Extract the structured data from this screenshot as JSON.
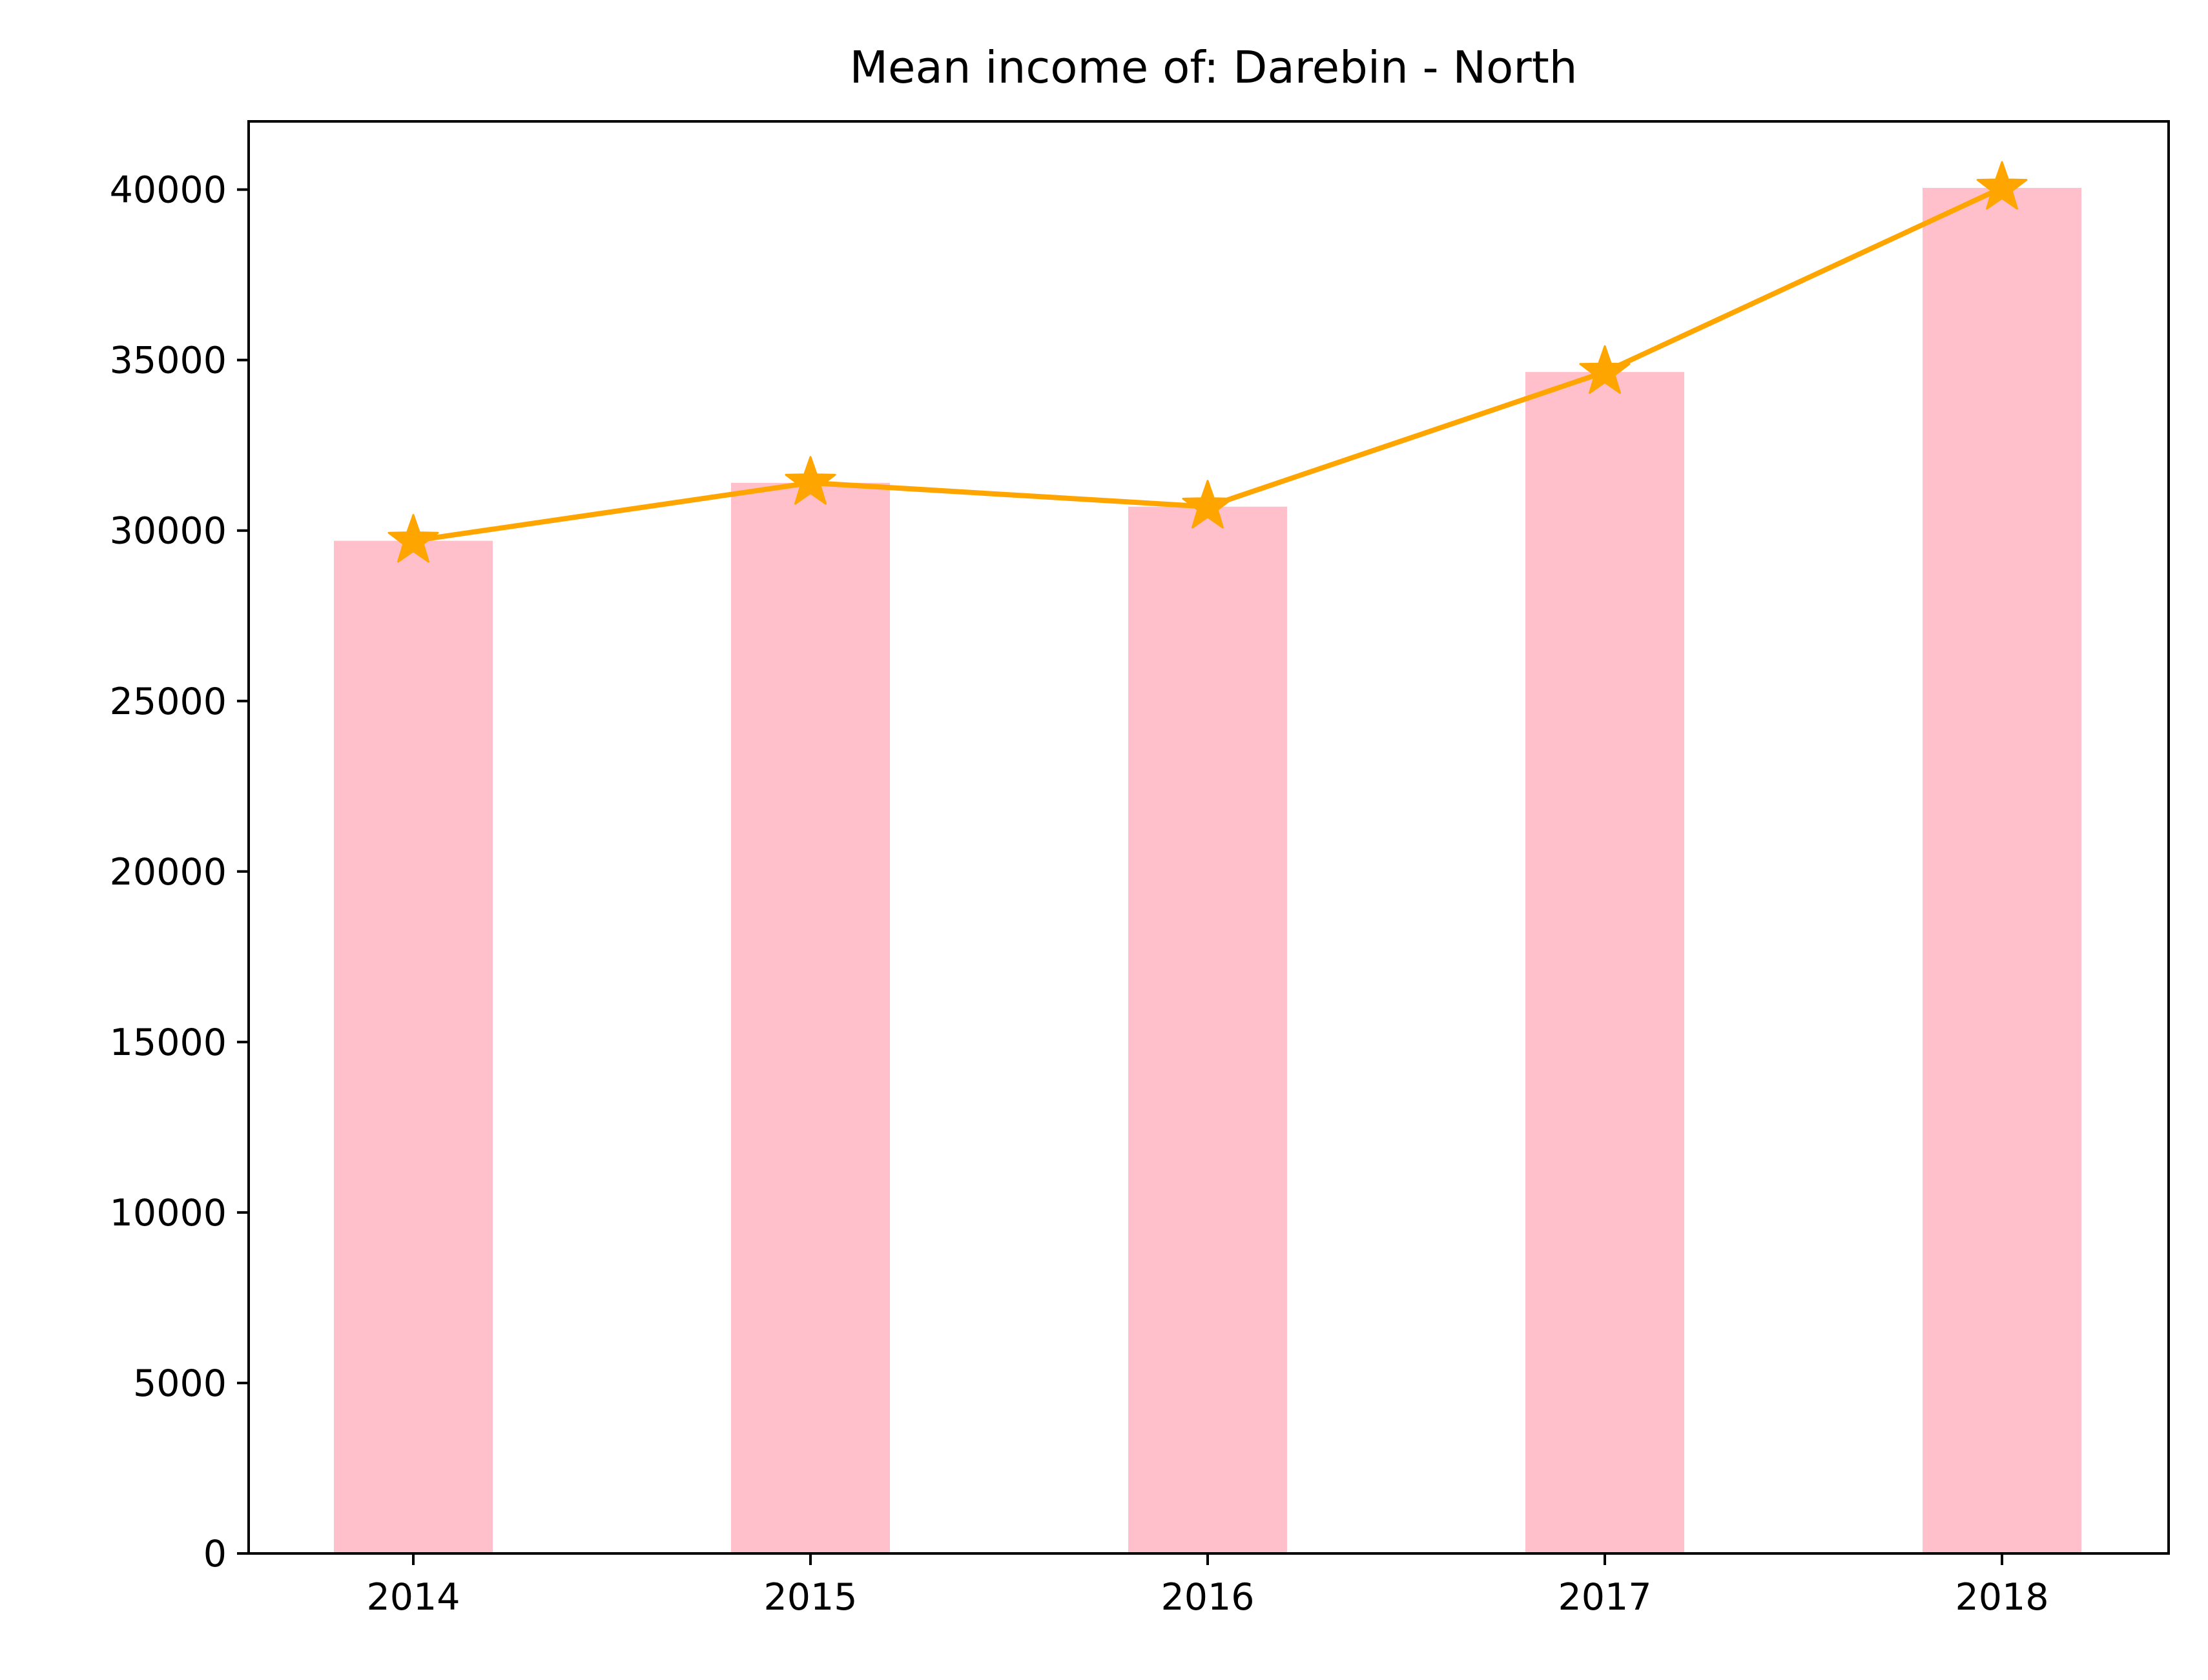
{
  "chart_data": {
    "type": "bar",
    "title": "Mean income of: Darebin - North",
    "xlabel": "",
    "ylabel": "",
    "categories": [
      "2014",
      "2015",
      "2016",
      "2017",
      "2018"
    ],
    "series": [
      {
        "type": "bar",
        "values": [
          29700,
          31400,
          30700,
          34650,
          40050
        ],
        "color": "#ffc0cb"
      },
      {
        "type": "line",
        "marker": "star",
        "values": [
          29700,
          31400,
          30700,
          34650,
          40050
        ],
        "color": "#ffa500"
      }
    ],
    "ylim": [
      0,
      42000
    ],
    "yticks": [
      0,
      5000,
      10000,
      15000,
      20000,
      25000,
      30000,
      35000,
      40000
    ],
    "grid": false,
    "legend": "none"
  }
}
